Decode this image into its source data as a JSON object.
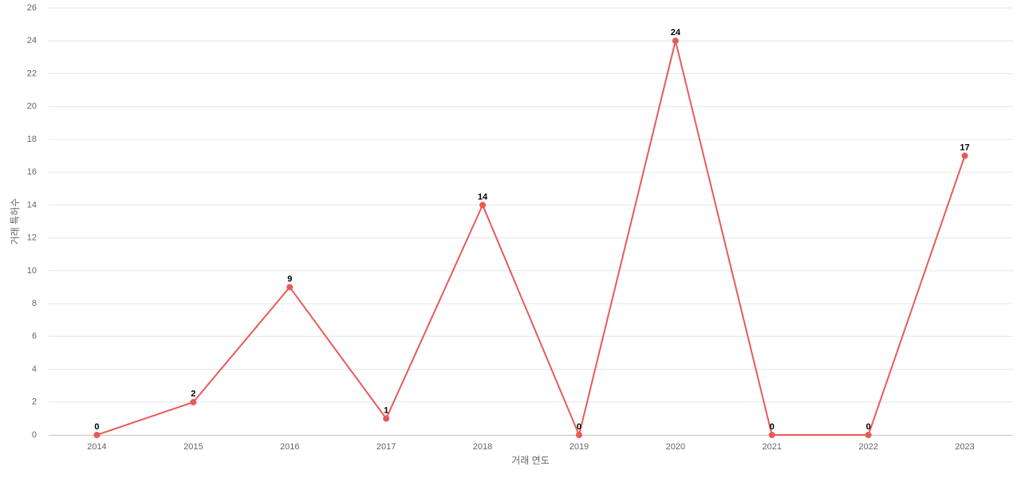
{
  "chart_data": {
    "type": "line",
    "x_label": "거래 연도",
    "y_label": "거래 특허수",
    "categories": [
      "2014",
      "2015",
      "2016",
      "2017",
      "2018",
      "2019",
      "2020",
      "2021",
      "2022",
      "2023"
    ],
    "series": [
      {
        "name": "거래 특허수",
        "color": "#e85a5a",
        "values": [
          0,
          2,
          9,
          1,
          14,
          0,
          24,
          0,
          0,
          17
        ]
      }
    ],
    "ylim": [
      0,
      26
    ],
    "yticks": [
      0,
      2,
      4,
      6,
      8,
      10,
      12,
      14,
      16,
      18,
      20,
      22,
      24,
      26
    ],
    "grid": true
  }
}
